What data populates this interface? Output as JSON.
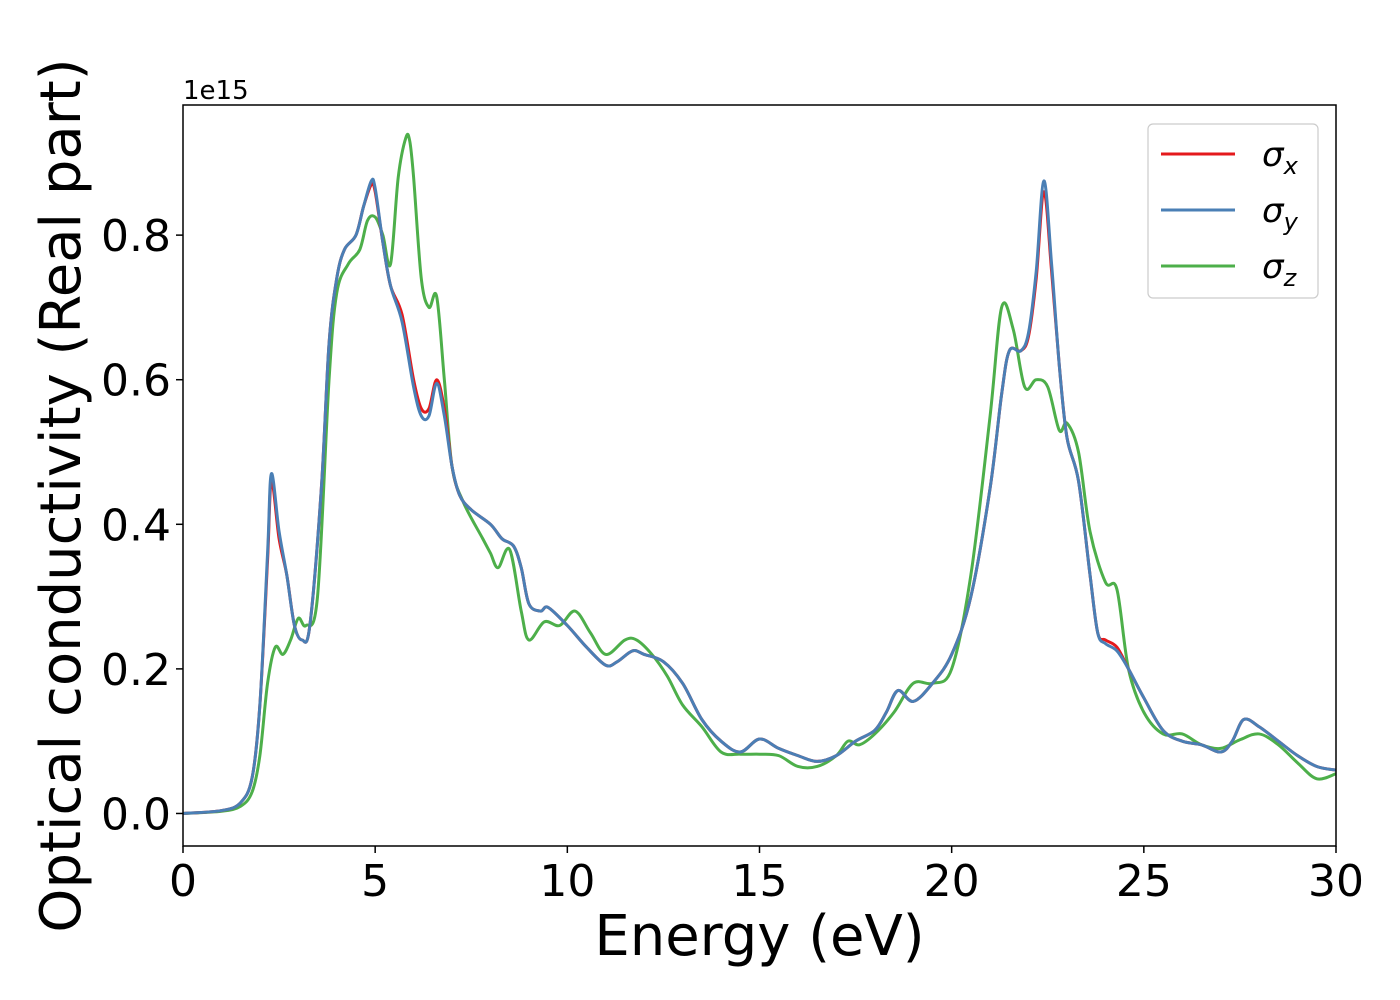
{
  "chart_data": {
    "type": "line",
    "title": "",
    "xlabel": "Energy (eV)",
    "ylabel": "Optical conductivity (Real part)",
    "y_offset_label": "1e15",
    "xlim": [
      0,
      30
    ],
    "ylim": [
      -0.045,
      0.98
    ],
    "xticks": [
      0,
      5,
      10,
      15,
      20,
      25,
      30
    ],
    "xtick_labels": [
      "0",
      "5",
      "10",
      "15",
      "20",
      "25",
      "30"
    ],
    "yticks": [
      0.0,
      0.2,
      0.4,
      0.6,
      0.8
    ],
    "ytick_labels": [
      "0.0",
      "0.2",
      "0.4",
      "0.6",
      "0.8"
    ],
    "grid": false,
    "legend_position": "top-right",
    "series": [
      {
        "name": "σx",
        "legend_main": "σ",
        "legend_sub": "x",
        "color": "#e41a1c",
        "x": [
          0,
          1,
          1.5,
          1.8,
          2.0,
          2.2,
          2.3,
          2.5,
          2.7,
          2.9,
          3.1,
          3.3,
          3.6,
          3.8,
          4.0,
          4.2,
          4.5,
          4.7,
          4.9,
          5.0,
          5.2,
          5.4,
          5.7,
          6.0,
          6.2,
          6.4,
          6.6,
          6.8,
          7.0,
          7.2,
          7.5,
          8.0,
          8.3,
          8.6,
          8.8,
          9.0,
          9.3,
          9.5,
          10.0,
          10.5,
          11.0,
          11.3,
          11.7,
          12.0,
          12.5,
          13.0,
          13.5,
          14.0,
          14.5,
          15.0,
          15.5,
          16.0,
          16.5,
          17.0,
          17.5,
          18.0,
          18.3,
          18.6,
          19.0,
          19.5,
          20.0,
          20.5,
          21.0,
          21.3,
          21.5,
          21.8,
          22.0,
          22.2,
          22.4,
          22.6,
          22.8,
          23.0,
          23.3,
          23.6,
          23.8,
          24.0,
          24.3,
          24.6,
          25.0,
          25.5,
          26.0,
          26.5,
          27.0,
          27.3,
          27.6,
          28.0,
          28.5,
          29.0,
          29.5,
          30.0
        ],
        "y": [
          0,
          0.004,
          0.015,
          0.05,
          0.15,
          0.35,
          0.46,
          0.38,
          0.33,
          0.26,
          0.24,
          0.26,
          0.45,
          0.65,
          0.74,
          0.78,
          0.8,
          0.84,
          0.87,
          0.86,
          0.79,
          0.73,
          0.69,
          0.6,
          0.56,
          0.56,
          0.6,
          0.56,
          0.48,
          0.44,
          0.42,
          0.4,
          0.38,
          0.37,
          0.34,
          0.29,
          0.28,
          0.285,
          0.26,
          0.23,
          0.205,
          0.21,
          0.225,
          0.22,
          0.21,
          0.18,
          0.13,
          0.1,
          0.085,
          0.103,
          0.09,
          0.08,
          0.072,
          0.08,
          0.1,
          0.115,
          0.14,
          0.17,
          0.155,
          0.18,
          0.22,
          0.3,
          0.45,
          0.58,
          0.64,
          0.64,
          0.66,
          0.74,
          0.86,
          0.75,
          0.62,
          0.52,
          0.46,
          0.33,
          0.25,
          0.24,
          0.23,
          0.2,
          0.16,
          0.115,
          0.1,
          0.095,
          0.085,
          0.1,
          0.13,
          0.12,
          0.1,
          0.08,
          0.065,
          0.06
        ]
      },
      {
        "name": "σy",
        "legend_main": "σ",
        "legend_sub": "y",
        "color": "#4a7fb5",
        "x": [
          0,
          1,
          1.5,
          1.8,
          2.0,
          2.2,
          2.3,
          2.5,
          2.7,
          2.9,
          3.1,
          3.3,
          3.6,
          3.8,
          4.0,
          4.2,
          4.5,
          4.7,
          4.9,
          5.0,
          5.2,
          5.4,
          5.7,
          6.0,
          6.2,
          6.4,
          6.6,
          6.8,
          7.0,
          7.2,
          7.5,
          8.0,
          8.3,
          8.6,
          8.8,
          9.0,
          9.3,
          9.5,
          10.0,
          10.5,
          11.0,
          11.3,
          11.7,
          12.0,
          12.5,
          13.0,
          13.5,
          14.0,
          14.5,
          15.0,
          15.5,
          16.0,
          16.5,
          17.0,
          17.5,
          18.0,
          18.3,
          18.6,
          19.0,
          19.5,
          20.0,
          20.5,
          21.0,
          21.3,
          21.5,
          21.8,
          22.0,
          22.2,
          22.4,
          22.6,
          22.8,
          23.0,
          23.3,
          23.6,
          23.8,
          24.0,
          24.3,
          24.6,
          25.0,
          25.5,
          26.0,
          26.5,
          27.0,
          27.3,
          27.6,
          28.0,
          28.5,
          29.0,
          29.5,
          30.0
        ],
        "y": [
          0,
          0.004,
          0.015,
          0.05,
          0.15,
          0.36,
          0.47,
          0.39,
          0.33,
          0.26,
          0.24,
          0.26,
          0.45,
          0.65,
          0.74,
          0.78,
          0.8,
          0.84,
          0.875,
          0.865,
          0.79,
          0.73,
          0.68,
          0.59,
          0.55,
          0.55,
          0.595,
          0.55,
          0.48,
          0.44,
          0.42,
          0.4,
          0.38,
          0.37,
          0.34,
          0.29,
          0.28,
          0.285,
          0.26,
          0.23,
          0.205,
          0.21,
          0.225,
          0.22,
          0.21,
          0.18,
          0.13,
          0.1,
          0.085,
          0.103,
          0.09,
          0.08,
          0.072,
          0.08,
          0.1,
          0.115,
          0.14,
          0.17,
          0.155,
          0.18,
          0.22,
          0.3,
          0.45,
          0.58,
          0.64,
          0.64,
          0.665,
          0.75,
          0.875,
          0.76,
          0.62,
          0.52,
          0.46,
          0.33,
          0.25,
          0.235,
          0.225,
          0.2,
          0.16,
          0.115,
          0.1,
          0.095,
          0.085,
          0.1,
          0.13,
          0.12,
          0.1,
          0.08,
          0.065,
          0.06
        ]
      },
      {
        "name": "σz",
        "legend_main": "σ",
        "legend_sub": "z",
        "color": "#4daf4a",
        "x": [
          0,
          1,
          1.5,
          1.8,
          2.0,
          2.2,
          2.4,
          2.6,
          2.8,
          3.0,
          3.2,
          3.5,
          3.8,
          4.0,
          4.3,
          4.6,
          4.8,
          5.0,
          5.2,
          5.4,
          5.6,
          5.8,
          5.9,
          6.0,
          6.2,
          6.4,
          6.6,
          6.8,
          7.0,
          7.3,
          7.8,
          8.0,
          8.2,
          8.5,
          8.8,
          9.0,
          9.4,
          9.8,
          10.2,
          10.6,
          11.0,
          11.5,
          11.8,
          12.2,
          12.6,
          13.0,
          13.5,
          14.0,
          14.5,
          15.0,
          15.5,
          16.0,
          16.5,
          17.0,
          17.3,
          17.6,
          18.0,
          18.5,
          19.0,
          19.5,
          20.0,
          20.5,
          21.0,
          21.3,
          21.6,
          21.9,
          22.2,
          22.5,
          22.8,
          23.0,
          23.3,
          23.6,
          24.0,
          24.3,
          24.6,
          25.0,
          25.5,
          26.0,
          26.5,
          27.0,
          27.5,
          28.0,
          28.5,
          29.0,
          29.5,
          30.0
        ],
        "y": [
          0,
          0.003,
          0.01,
          0.03,
          0.08,
          0.18,
          0.23,
          0.22,
          0.24,
          0.27,
          0.26,
          0.3,
          0.6,
          0.72,
          0.76,
          0.78,
          0.82,
          0.825,
          0.8,
          0.76,
          0.88,
          0.935,
          0.93,
          0.88,
          0.74,
          0.7,
          0.715,
          0.6,
          0.48,
          0.43,
          0.38,
          0.36,
          0.34,
          0.365,
          0.28,
          0.24,
          0.265,
          0.26,
          0.28,
          0.25,
          0.22,
          0.24,
          0.24,
          0.22,
          0.19,
          0.15,
          0.12,
          0.085,
          0.082,
          0.082,
          0.08,
          0.065,
          0.065,
          0.08,
          0.1,
          0.095,
          0.11,
          0.14,
          0.18,
          0.18,
          0.2,
          0.33,
          0.55,
          0.7,
          0.67,
          0.59,
          0.6,
          0.59,
          0.53,
          0.54,
          0.5,
          0.39,
          0.32,
          0.31,
          0.2,
          0.14,
          0.11,
          0.11,
          0.095,
          0.09,
          0.102,
          0.11,
          0.095,
          0.07,
          0.048,
          0.055
        ]
      }
    ]
  }
}
